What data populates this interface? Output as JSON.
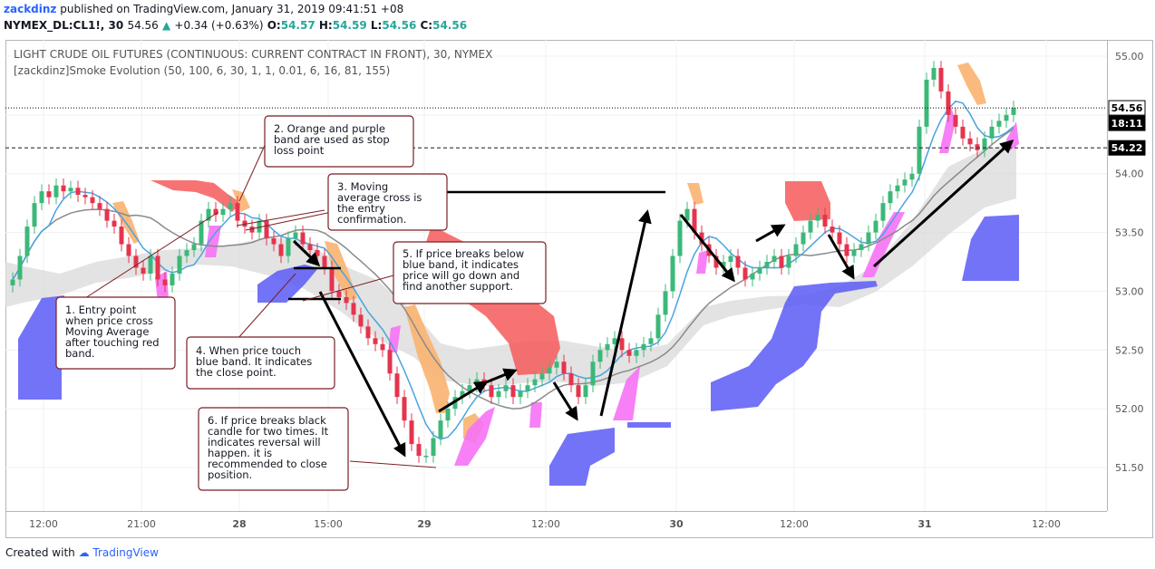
{
  "header": {
    "author": "zackdinz",
    "published_text": "published on TradingView.com, January 31, 2019 09:41:51 +08",
    "symbol": "NYMEX_DL:CL1!, 30",
    "last": "54.56",
    "change": "+0.34 (+0.63%)",
    "o_label": "O:",
    "o_val": "54.57",
    "h_label": "H:",
    "h_val": "54.59",
    "l_label": "L:",
    "l_val": "54.56",
    "c_label": "C:",
    "c_val": "54.56"
  },
  "legend": {
    "title": "LIGHT CRUDE OIL FUTURES (CONTINUOUS: CURRENT CONTRACT IN FRONT), 30, NYMEX",
    "indicator": "[zackdinz]Smoke Evolution (50, 100, 6, 30, 1, 1, 0.01, 6, 16, 81, 155)"
  },
  "footer": {
    "created_with": "Created with",
    "brand": "TradingView"
  },
  "colors": {
    "up": "#3cb878",
    "down": "#e5344d",
    "red_band": "#f65b5b",
    "blue_band": "#5b5bf6",
    "orange_band": "#f9b370",
    "magenta_band": "#f672f6",
    "cloud": "#d8d8d8",
    "ma_fast": "#4aa3df",
    "ma_slow": "#8a8a8a"
  },
  "chart_data": {
    "type": "candlestick",
    "y_ticks": [
      "55.00",
      "54.50",
      "54.00",
      "53.50",
      "53.00",
      "52.50",
      "52.00",
      "51.50"
    ],
    "ylim": [
      51.2,
      55.3
    ],
    "x_ticks": [
      "12:00",
      "21:00",
      "28",
      "15:00",
      "29",
      "12:00",
      "30",
      "12:00",
      "31",
      "12:00"
    ],
    "price_labels": [
      "54.56",
      "18:11",
      "54.22"
    ],
    "last_price": 54.56,
    "level_price": 54.22,
    "closes": [
      53.1,
      53.3,
      53.55,
      53.75,
      53.85,
      53.8,
      53.9,
      53.85,
      53.88,
      53.82,
      53.8,
      53.75,
      53.7,
      53.6,
      53.55,
      53.4,
      53.3,
      53.2,
      53.15,
      53.3,
      53.1,
      53.05,
      53.15,
      53.3,
      53.35,
      53.4,
      53.6,
      53.7,
      53.65,
      53.7,
      53.75,
      53.6,
      53.55,
      53.5,
      53.6,
      53.45,
      53.4,
      53.3,
      53.45,
      53.5,
      53.4,
      53.35,
      53.3,
      53.2,
      53.0,
      52.95,
      52.9,
      52.8,
      52.7,
      52.6,
      52.55,
      52.5,
      52.3,
      52.1,
      51.9,
      51.7,
      51.6,
      51.6,
      51.75,
      51.9,
      52.0,
      52.1,
      52.15,
      52.2,
      52.25,
      52.2,
      52.1,
      52.15,
      52.2,
      52.1,
      52.15,
      52.2,
      52.25,
      52.3,
      52.35,
      52.4,
      52.3,
      52.2,
      52.1,
      52.2,
      52.4,
      52.5,
      52.55,
      52.6,
      52.5,
      52.45,
      52.5,
      52.55,
      52.6,
      52.8,
      53.0,
      53.3,
      53.6,
      53.7,
      53.5,
      53.4,
      53.3,
      53.2,
      53.25,
      53.3,
      53.2,
      53.1,
      53.15,
      53.2,
      53.25,
      53.3,
      53.2,
      53.3,
      53.4,
      53.5,
      53.6,
      53.65,
      53.55,
      53.5,
      53.4,
      53.3,
      53.35,
      53.4,
      53.5,
      53.6,
      53.75,
      53.85,
      53.9,
      53.95,
      54.0,
      54.4,
      54.8,
      54.9,
      54.7,
      54.5,
      54.4,
      54.3,
      54.25,
      54.2,
      54.3,
      54.4,
      54.45,
      54.5,
      54.56
    ]
  }
}
